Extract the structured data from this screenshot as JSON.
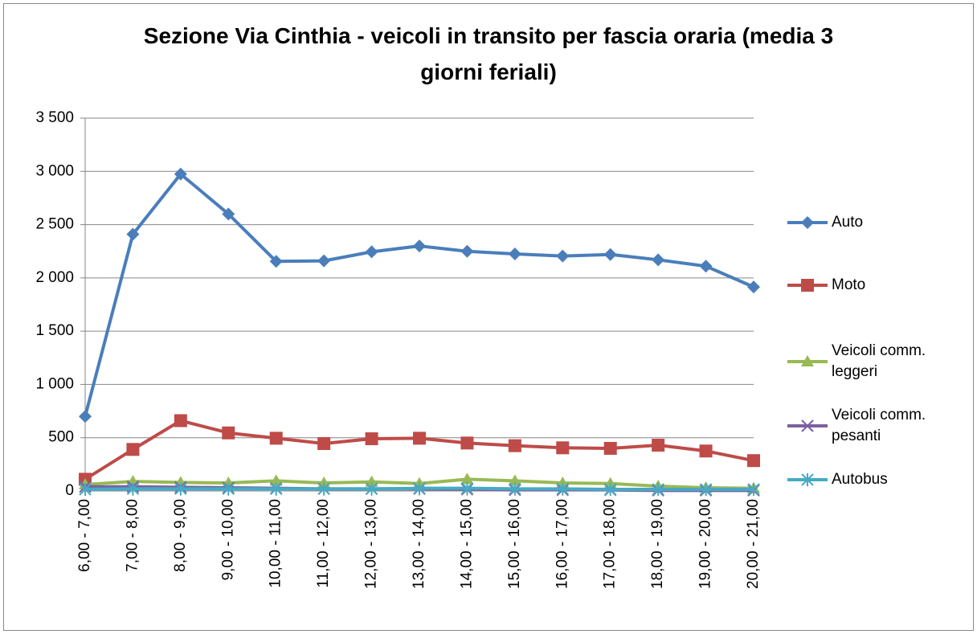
{
  "chart_data": {
    "type": "line",
    "title": "Sezione Via Cinthia - veicoli in transito per fascia oraria (media 3 giorni feriali)",
    "categories": [
      "6,00 - 7,00",
      "7,00 - 8,00",
      "8,00 - 9,00",
      "9,00 - 10,00",
      "10,00 - 11,00",
      "11,00 - 12,00",
      "12,00 - 13,00",
      "13,00 - 14,00",
      "14,00 - 15,00",
      "15,00 - 16,00",
      "16,00 - 17,00",
      "17,00 - 18,00",
      "18,00 - 19,00",
      "19,00 - 20,00",
      "20,00 - 21,00"
    ],
    "series": [
      {
        "name": "Auto",
        "color": "#4a7ebb",
        "marker": "diamond",
        "values": [
          700,
          2410,
          2975,
          2600,
          2155,
          2160,
          2245,
          2300,
          2250,
          2225,
          2205,
          2220,
          2170,
          2110,
          1915
        ]
      },
      {
        "name": "Moto",
        "color": "#be4b48",
        "marker": "square",
        "values": [
          110,
          390,
          660,
          545,
          495,
          445,
          490,
          495,
          450,
          425,
          405,
          400,
          430,
          375,
          285
        ]
      },
      {
        "name": "Veicoli comm. leggeri",
        "color": "#98b954",
        "marker": "triangle",
        "values": [
          60,
          90,
          80,
          75,
          95,
          75,
          85,
          70,
          110,
          95,
          75,
          70,
          45,
          30,
          25
        ]
      },
      {
        "name": "Veicoli comm. pesanti",
        "color": "#7d60a0",
        "marker": "x",
        "values": [
          40,
          40,
          35,
          30,
          25,
          20,
          20,
          20,
          15,
          10,
          10,
          10,
          5,
          5,
          5
        ]
      },
      {
        "name": "Autobus",
        "color": "#46aac5",
        "marker": "star",
        "values": [
          15,
          20,
          20,
          20,
          20,
          20,
          20,
          25,
          25,
          20,
          20,
          15,
          15,
          15,
          15
        ]
      }
    ],
    "ylim": [
      0,
      3500
    ],
    "yticks": [
      0,
      500,
      {
        "value": 1000,
        "label": "1 000"
      },
      {
        "value": 1500,
        "label": "1 500"
      },
      {
        "value": 2000,
        "label": "2 000"
      },
      {
        "value": 2500,
        "label": "2 500"
      },
      {
        "value": 3000,
        "label": "3 000"
      },
      {
        "value": 3500,
        "label": "3 500"
      }
    ],
    "grid": true,
    "legend": "right"
  }
}
